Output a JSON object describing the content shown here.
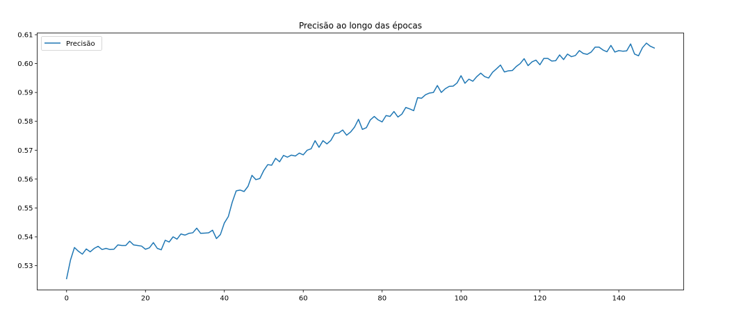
{
  "chart_data": {
    "type": "line",
    "title": "Precisão ao longo das épocas",
    "xlabel": "",
    "ylabel": "",
    "xlim": [
      -7.45,
      156.45
    ],
    "ylim": [
      0.5216,
      0.6106
    ],
    "x_ticks": [
      0,
      20,
      40,
      60,
      80,
      100,
      120,
      140
    ],
    "y_ticks": [
      0.53,
      0.54,
      0.55,
      0.56,
      0.57,
      0.58,
      0.59,
      0.6,
      0.61
    ],
    "y_tick_labels": [
      "0.53",
      "0.54",
      "0.55",
      "0.56",
      "0.57",
      "0.58",
      "0.59",
      "0.60",
      "0.61"
    ],
    "grid": false,
    "legend_position": "top-left",
    "series": [
      {
        "name": "Precisão",
        "color": "#1f77b4",
        "x_start": 0,
        "values": [
          0.5255,
          0.532,
          0.5363,
          0.535,
          0.534,
          0.5358,
          0.5348,
          0.536,
          0.5367,
          0.5356,
          0.536,
          0.5356,
          0.5357,
          0.5372,
          0.537,
          0.537,
          0.5385,
          0.5372,
          0.537,
          0.5368,
          0.5357,
          0.5362,
          0.538,
          0.536,
          0.5355,
          0.5388,
          0.5382,
          0.54,
          0.5392,
          0.541,
          0.5406,
          0.5412,
          0.5414,
          0.543,
          0.5412,
          0.5413,
          0.5414,
          0.5423,
          0.5394,
          0.5408,
          0.5448,
          0.547,
          0.552,
          0.5559,
          0.5562,
          0.5557,
          0.5575,
          0.5613,
          0.5598,
          0.5602,
          0.563,
          0.565,
          0.5648,
          0.5672,
          0.566,
          0.5682,
          0.5676,
          0.5683,
          0.568,
          0.569,
          0.5684,
          0.57,
          0.5705,
          0.5733,
          0.571,
          0.5733,
          0.5722,
          0.5734,
          0.5758,
          0.576,
          0.577,
          0.5752,
          0.5763,
          0.578,
          0.5807,
          0.5772,
          0.5778,
          0.5805,
          0.5817,
          0.5805,
          0.5798,
          0.582,
          0.5817,
          0.5834,
          0.5815,
          0.5825,
          0.5848,
          0.5843,
          0.5837,
          0.5882,
          0.588,
          0.5892,
          0.5898,
          0.59,
          0.5924,
          0.59,
          0.5913,
          0.5921,
          0.5922,
          0.5933,
          0.5958,
          0.5932,
          0.5946,
          0.5939,
          0.5955,
          0.5967,
          0.5955,
          0.595,
          0.597,
          0.5982,
          0.5995,
          0.5971,
          0.5975,
          0.5976,
          0.599,
          0.6,
          0.6017,
          0.5993,
          0.6006,
          0.6012,
          0.5996,
          0.6018,
          0.6018,
          0.6009,
          0.601,
          0.603,
          0.6014,
          0.6033,
          0.6024,
          0.6028,
          0.6045,
          0.6035,
          0.6032,
          0.604,
          0.6057,
          0.6057,
          0.6047,
          0.6041,
          0.6063,
          0.604,
          0.6045,
          0.6043,
          0.6044,
          0.6068,
          0.6033,
          0.6027,
          0.6055,
          0.6071,
          0.606,
          0.6054
        ]
      }
    ]
  }
}
